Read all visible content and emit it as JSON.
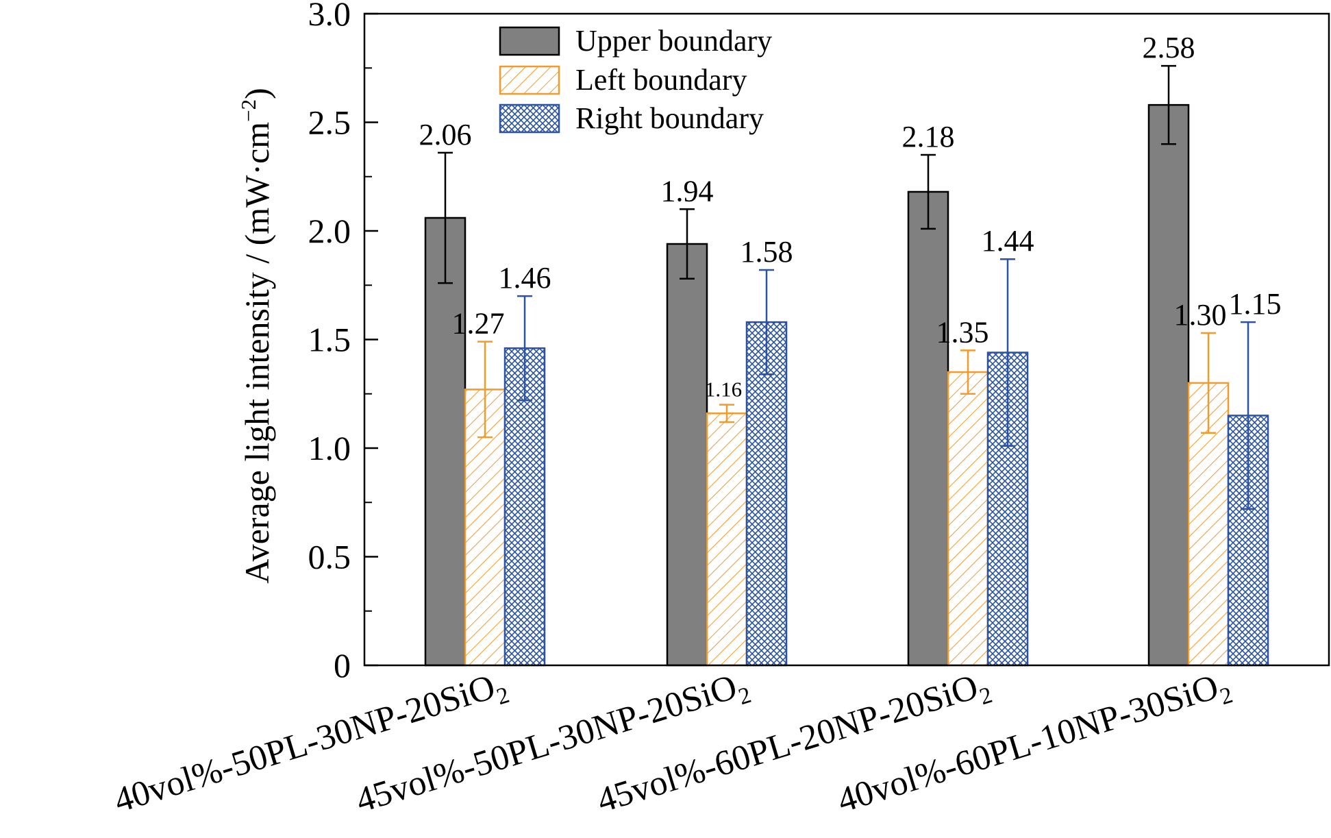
{
  "chart_data": {
    "type": "bar",
    "title": "",
    "xlabel": "",
    "ylabel": "Average light intensity / (mW·cm",
    "ylabel_sup": "−2",
    "ylabel_close": ")",
    "ylim": [
      0,
      3.0
    ],
    "yticks": [
      0,
      0.5,
      1.0,
      1.5,
      2.0,
      2.5,
      3.0
    ],
    "ytick_labels": [
      "0",
      "0.5",
      "1.0",
      "1.5",
      "2.0",
      "2.5",
      "3.0"
    ],
    "grid": false,
    "legend_position": "top-center",
    "categories": [
      {
        "main": "40vol%-50PL-30NP-20SiO",
        "sub": "2"
      },
      {
        "main": "45vol%-50PL-30NP-20SiO",
        "sub": "2"
      },
      {
        "main": "45vol%-60PL-20NP-20SiO",
        "sub": "2"
      },
      {
        "main": "40vol%-60PL-10NP-30SiO",
        "sub": "2"
      }
    ],
    "series": [
      {
        "name": "Upper boundary",
        "pattern": "solid",
        "color": "#808080",
        "edge": "#000000",
        "values": [
          2.06,
          1.94,
          2.18,
          2.58
        ],
        "errors": [
          0.3,
          0.16,
          0.17,
          0.18
        ],
        "labels": [
          "2.06",
          "1.94",
          "2.18",
          "2.58"
        ]
      },
      {
        "name": "Left boundary",
        "pattern": "hatch",
        "color": "#f39a2a",
        "edge": "#f39a2a",
        "values": [
          1.27,
          1.16,
          1.35,
          1.3
        ],
        "errors": [
          0.22,
          0.04,
          0.1,
          0.23
        ],
        "labels": [
          "1.27",
          "1.16",
          "1.35",
          "1.30"
        ]
      },
      {
        "name": "Right boundary",
        "pattern": "crosshatch",
        "color": "#2a53a6",
        "edge": "#2a53a6",
        "values": [
          1.46,
          1.58,
          1.44,
          1.15
        ],
        "errors": [
          0.24,
          0.24,
          0.43,
          0.43
        ],
        "labels": [
          "1.46",
          "1.58",
          "1.44",
          "1.15"
        ]
      }
    ]
  }
}
